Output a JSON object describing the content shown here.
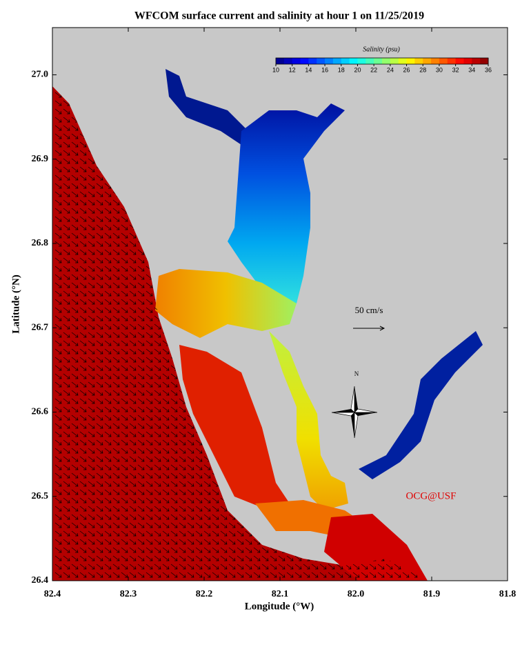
{
  "map": {
    "title": "WFCOM surface current and salinity at hour 1 on 11/25/2019",
    "xlabel": "Longitude (°W)",
    "ylabel": "Latitude (°N)",
    "xlim": [
      82.4,
      81.8
    ],
    "ylim": [
      26.4,
      27.056
    ],
    "xticks": [
      82.4,
      82.3,
      82.2,
      82.1,
      {
        "value": 82,
        "label": "82.0"
      },
      81.9,
      81.8
    ],
    "yticks": [
      26.4,
      26.5,
      26.6,
      26.7,
      26.8,
      26.9,
      {
        "value": 27,
        "label": "27.0"
      }
    ],
    "colorbar": {
      "label": "Salinity (psu)",
      "lim": [
        10,
        36
      ],
      "ticks": [
        10,
        12,
        14,
        16,
        18,
        20,
        22,
        24,
        26,
        28,
        30,
        32,
        34,
        36
      ]
    },
    "scale_arrow": "50 cm/s",
    "north": "N",
    "credit": "OCG@USF"
  }
}
